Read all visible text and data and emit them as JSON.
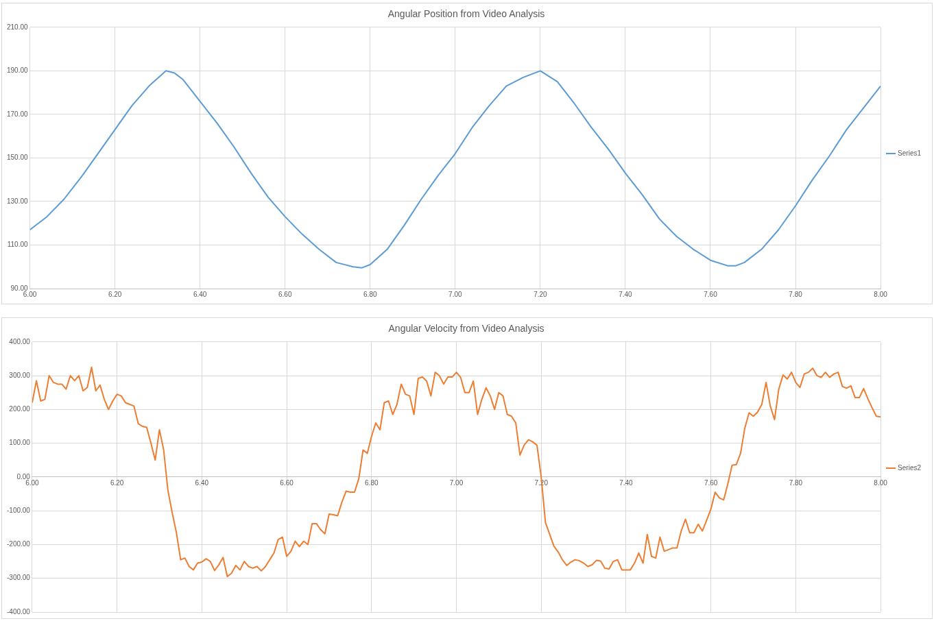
{
  "chart_data": [
    {
      "type": "line",
      "title": "Angular Position from Video Analysis",
      "legend": "right",
      "grid": true,
      "marker": "none",
      "line_style": "solid",
      "xlim": [
        6,
        8
      ],
      "ylim": [
        90,
        210
      ],
      "xticks": [
        {
          "value": 6,
          "label": "6.00"
        },
        {
          "value": 6.2,
          "label": "6.20"
        },
        {
          "value": 6.4,
          "label": "6.40"
        },
        {
          "value": 6.6,
          "label": "6.60"
        },
        {
          "value": 6.8,
          "label": "6.80"
        },
        {
          "value": 7,
          "label": "7.00"
        },
        {
          "value": 7.2,
          "label": "7.20"
        },
        {
          "value": 7.4,
          "label": "7.40"
        },
        {
          "value": 7.6,
          "label": "7.60"
        },
        {
          "value": 7.8,
          "label": "7.80"
        },
        {
          "value": 8,
          "label": "8.00"
        }
      ],
      "yticks": [
        {
          "value": 90,
          "label": "90.00"
        },
        {
          "value": 110,
          "label": "110.00"
        },
        {
          "value": 130,
          "label": "130.00"
        },
        {
          "value": 150,
          "label": "150.00"
        },
        {
          "value": 170,
          "label": "170.00"
        },
        {
          "value": 190,
          "label": "190.00"
        },
        {
          "value": 210,
          "label": "210.00"
        }
      ],
      "series": [
        {
          "name": "Series1",
          "color": "#5b9bd5",
          "x": [
            6.0,
            6.04,
            6.08,
            6.12,
            6.16,
            6.2,
            6.24,
            6.28,
            6.32,
            6.34,
            6.36,
            6.4,
            6.44,
            6.48,
            6.52,
            6.56,
            6.6,
            6.64,
            6.68,
            6.72,
            6.76,
            6.78,
            6.8,
            6.84,
            6.88,
            6.92,
            6.96,
            7.0,
            7.04,
            7.08,
            7.12,
            7.16,
            7.2,
            7.24,
            7.28,
            7.32,
            7.36,
            7.4,
            7.44,
            7.48,
            7.52,
            7.56,
            7.6,
            7.64,
            7.66,
            7.68,
            7.72,
            7.76,
            7.8,
            7.84,
            7.88,
            7.92,
            7.96,
            8.0
          ],
          "values": [
            117,
            123,
            131,
            141,
            152,
            163,
            174,
            183,
            190,
            189,
            186,
            176,
            166,
            155,
            143,
            132,
            123,
            115,
            108,
            102,
            100,
            99.5,
            101,
            108,
            119,
            131,
            142,
            152,
            164,
            174,
            183,
            187,
            190,
            185,
            175,
            164,
            154,
            143,
            133,
            122,
            114,
            108,
            103,
            100.5,
            100.5,
            102,
            108,
            117,
            128,
            140,
            151,
            163,
            173,
            183
          ]
        }
      ]
    },
    {
      "type": "line",
      "title": "Angular Velocity from Video Analysis",
      "legend": "right",
      "grid": true,
      "marker": "none",
      "line_style": "solid",
      "xlim": [
        6,
        8
      ],
      "ylim": [
        -400,
        400
      ],
      "xticks": [
        {
          "value": 6,
          "label": "6.00"
        },
        {
          "value": 6.2,
          "label": "6.20"
        },
        {
          "value": 6.4,
          "label": "6.40"
        },
        {
          "value": 6.6,
          "label": "6.60"
        },
        {
          "value": 6.8,
          "label": "6.80"
        },
        {
          "value": 7,
          "label": "7.00"
        },
        {
          "value": 7.2,
          "label": "7.20"
        },
        {
          "value": 7.4,
          "label": "7.40"
        },
        {
          "value": 7.6,
          "label": "7.60"
        },
        {
          "value": 7.8,
          "label": "7.80"
        },
        {
          "value": 8,
          "label": "8.00"
        }
      ],
      "yticks": [
        {
          "value": -400,
          "label": "-400.00"
        },
        {
          "value": -300,
          "label": "-300.00"
        },
        {
          "value": -200,
          "label": "-200.00"
        },
        {
          "value": -100,
          "label": "-100.00"
        },
        {
          "value": 0,
          "label": "0.00"
        },
        {
          "value": 100,
          "label": "100.00"
        },
        {
          "value": 200,
          "label": "200.00"
        },
        {
          "value": 300,
          "label": "300.00"
        },
        {
          "value": 400,
          "label": "400.00"
        }
      ],
      "series": [
        {
          "name": "Series2",
          "color": "#ed7d31",
          "x": [
            6.0,
            6.01,
            6.02,
            6.03,
            6.04,
            6.05,
            6.06,
            6.07,
            6.08,
            6.09,
            6.1,
            6.11,
            6.12,
            6.13,
            6.14,
            6.15,
            6.16,
            6.17,
            6.18,
            6.19,
            6.2,
            6.21,
            6.22,
            6.23,
            6.24,
            6.25,
            6.26,
            6.27,
            6.28,
            6.29,
            6.3,
            6.31,
            6.32,
            6.33,
            6.34,
            6.35,
            6.36,
            6.37,
            6.38,
            6.39,
            6.4,
            6.41,
            6.42,
            6.43,
            6.44,
            6.45,
            6.46,
            6.47,
            6.48,
            6.49,
            6.5,
            6.51,
            6.52,
            6.53,
            6.54,
            6.55,
            6.56,
            6.57,
            6.58,
            6.59,
            6.6,
            6.61,
            6.62,
            6.63,
            6.64,
            6.65,
            6.66,
            6.67,
            6.68,
            6.69,
            6.7,
            6.71,
            6.72,
            6.73,
            6.74,
            6.75,
            6.76,
            6.77,
            6.78,
            6.79,
            6.8,
            6.81,
            6.82,
            6.83,
            6.84,
            6.85,
            6.86,
            6.87,
            6.88,
            6.89,
            6.9,
            6.91,
            6.92,
            6.93,
            6.94,
            6.95,
            6.96,
            6.97,
            6.98,
            6.99,
            7.0,
            7.01,
            7.02,
            7.03,
            7.04,
            7.05,
            7.06,
            7.07,
            7.08,
            7.09,
            7.1,
            7.11,
            7.12,
            7.13,
            7.14,
            7.15,
            7.16,
            7.17,
            7.18,
            7.19,
            7.2,
            7.21,
            7.22,
            7.23,
            7.24,
            7.25,
            7.26,
            7.27,
            7.28,
            7.29,
            7.3,
            7.31,
            7.32,
            7.33,
            7.34,
            7.35,
            7.36,
            7.37,
            7.38,
            7.39,
            7.4,
            7.41,
            7.42,
            7.43,
            7.44,
            7.45,
            7.46,
            7.47,
            7.48,
            7.49,
            7.5,
            7.51,
            7.52,
            7.53,
            7.54,
            7.55,
            7.56,
            7.57,
            7.58,
            7.59,
            7.6,
            7.61,
            7.62,
            7.63,
            7.64,
            7.65,
            7.66,
            7.67,
            7.68,
            7.69,
            7.7,
            7.71,
            7.72,
            7.73,
            7.74,
            7.75,
            7.76,
            7.77,
            7.78,
            7.79,
            7.8,
            7.81,
            7.82,
            7.83,
            7.84,
            7.85,
            7.86,
            7.87,
            7.88,
            7.89,
            7.9,
            7.91,
            7.92,
            7.93,
            7.94,
            7.95,
            7.96,
            7.97,
            7.98,
            7.99,
            8.0
          ],
          "values": [
            220,
            285,
            225,
            230,
            300,
            280,
            275,
            275,
            260,
            300,
            285,
            300,
            255,
            265,
            325,
            255,
            272,
            230,
            200,
            225,
            245,
            240,
            220,
            215,
            210,
            158,
            150,
            147,
            100,
            50,
            140,
            80,
            -40,
            -105,
            -165,
            -245,
            -240,
            -265,
            -275,
            -255,
            -252,
            -242,
            -250,
            -277,
            -260,
            -238,
            -295,
            -285,
            -262,
            -275,
            -250,
            -265,
            -270,
            -265,
            -278,
            -265,
            -245,
            -225,
            -185,
            -178,
            -235,
            -220,
            -190,
            -206,
            -190,
            -200,
            -138,
            -138,
            -156,
            -168,
            -110,
            -112,
            -115,
            -75,
            -42,
            -45,
            -45,
            -5,
            80,
            70,
            120,
            160,
            140,
            220,
            225,
            185,
            215,
            275,
            245,
            240,
            185,
            292,
            296,
            284,
            240,
            310,
            300,
            275,
            296,
            296,
            310,
            295,
            250,
            250,
            284,
            185,
            230,
            264,
            240,
            200,
            250,
            240,
            185,
            180,
            160,
            65,
            95,
            110,
            104,
            94,
            0,
            -135,
            -170,
            -205,
            -222,
            -245,
            -262,
            -252,
            -245,
            -248,
            -255,
            -265,
            -260,
            -247,
            -249,
            -270,
            -272,
            -250,
            -245,
            -275,
            -275,
            -275,
            -255,
            -225,
            -255,
            -170,
            -235,
            -240,
            -178,
            -220,
            -215,
            -210,
            -210,
            -160,
            -125,
            -165,
            -165,
            -140,
            -160,
            -128,
            -95,
            -45,
            -62,
            -68,
            -20,
            35,
            37,
            70,
            145,
            190,
            180,
            192,
            215,
            280,
            210,
            170,
            260,
            302,
            290,
            310,
            280,
            265,
            305,
            310,
            322,
            300,
            295,
            310,
            295,
            305,
            310,
            268,
            263,
            270,
            235,
            235,
            262,
            232,
            205,
            180,
            178
          ]
        }
      ]
    }
  ]
}
